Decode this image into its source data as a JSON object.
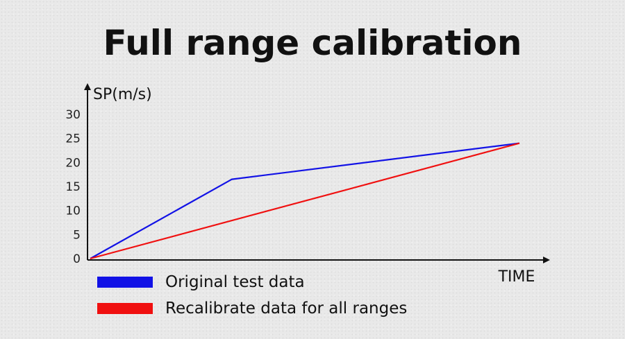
{
  "chart_data": {
    "type": "line",
    "title": "Full range calibration",
    "xlabel": "TIME",
    "ylabel": "SP(m/s)",
    "ylim": [
      0,
      30
    ],
    "y_ticks": [
      "0",
      "5",
      "10",
      "15",
      "20",
      "25",
      "30"
    ],
    "x_ticks": [],
    "grid": false,
    "legend_position": "bottom-left",
    "series": [
      {
        "name": "Original test data",
        "color": "#1212e6",
        "x": [
          0,
          33,
          100
        ],
        "y": [
          0,
          16.5,
          24
        ]
      },
      {
        "name": "Recalibrate data for all ranges",
        "color": "#f01010",
        "x": [
          0,
          100
        ],
        "y": [
          0,
          24
        ]
      }
    ]
  }
}
